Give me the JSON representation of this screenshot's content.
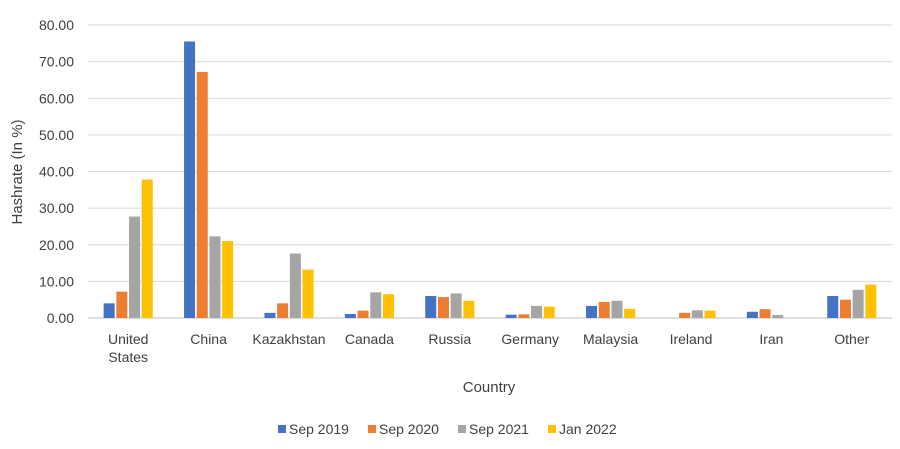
{
  "chart_data": {
    "type": "bar",
    "title": "",
    "xlabel": "Country",
    "ylabel": "Hashrate (In %)",
    "ylim": [
      0,
      80
    ],
    "ytick_step": 10,
    "ytick_format_decimals": 2,
    "grid": true,
    "legend_position": "bottom",
    "categories": [
      "United States",
      "China",
      "Kazakhstan",
      "Canada",
      "Russia",
      "Germany",
      "Malaysia",
      "Ireland",
      "Iran",
      "Other"
    ],
    "series": [
      {
        "name": "Sep 2019",
        "color": "#4472C4",
        "values": [
          4.0,
          75.5,
          1.4,
          1.1,
          6.0,
          0.9,
          3.3,
          0.0,
          1.7,
          6.0
        ]
      },
      {
        "name": "Sep 2020",
        "color": "#ED7D31",
        "values": [
          7.2,
          67.2,
          4.0,
          2.0,
          5.7,
          1.0,
          4.4,
          1.4,
          2.4,
          5.0
        ]
      },
      {
        "name": "Sep 2021",
        "color": "#A5A5A5",
        "values": [
          27.7,
          22.3,
          17.6,
          7.0,
          6.7,
          3.3,
          4.7,
          2.1,
          0.8,
          7.7
        ]
      },
      {
        "name": "Jan 2022",
        "color": "#FFC000",
        "values": [
          37.8,
          21.0,
          13.2,
          6.5,
          4.7,
          3.1,
          2.5,
          2.0,
          0.0,
          9.1
        ]
      }
    ]
  }
}
